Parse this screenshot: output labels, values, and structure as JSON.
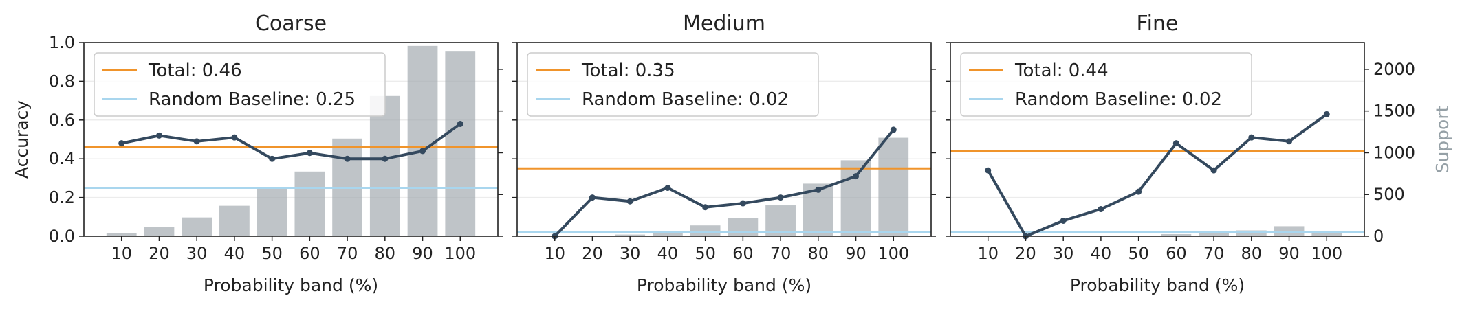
{
  "chart_data": [
    {
      "type": "bar",
      "title": "Coarse",
      "xlabel": "Probability band (%)",
      "ylabel": "Accuracy",
      "y2label": "",
      "categories": [
        "10",
        "20",
        "30",
        "40",
        "50",
        "60",
        "70",
        "80",
        "90",
        "100"
      ],
      "ylim": [
        0,
        1.0
      ],
      "y2lim": [
        0,
        2320
      ],
      "yticks": [
        0.0,
        0.2,
        0.4,
        0.6,
        0.8,
        1.0
      ],
      "y2ticks": [
        0,
        500,
        1000,
        1500,
        2000
      ],
      "show_left_tick_labels": true,
      "show_right_tick_labels": false,
      "support": [
        40,
        115,
        225,
        365,
        580,
        775,
        1170,
        1680,
        2280,
        2220
      ],
      "accuracy": [
        0.48,
        0.52,
        0.49,
        0.51,
        0.4,
        0.43,
        0.4,
        0.4,
        0.44,
        0.58
      ],
      "total": 0.46,
      "random_baseline": 0.25,
      "legend": [
        "Total: 0.46",
        "Random Baseline: 0.25"
      ],
      "legend_position": "top-left",
      "grid": "horizontal"
    },
    {
      "type": "bar",
      "title": "Medium",
      "xlabel": "Probability band (%)",
      "ylabel": "",
      "y2label": "",
      "categories": [
        "10",
        "20",
        "30",
        "40",
        "50",
        "60",
        "70",
        "80",
        "90",
        "100"
      ],
      "ylim": [
        0,
        1.0
      ],
      "y2lim": [
        0,
        2320
      ],
      "yticks": [
        0.0,
        0.2,
        0.4,
        0.6,
        0.8,
        1.0
      ],
      "y2ticks": [
        0,
        500,
        1000,
        1500,
        2000
      ],
      "show_left_tick_labels": false,
      "show_right_tick_labels": false,
      "support": [
        0,
        0,
        20,
        40,
        130,
        220,
        370,
        630,
        910,
        1180
      ],
      "accuracy": [
        0.0,
        0.2,
        0.18,
        0.25,
        0.15,
        0.17,
        0.2,
        0.24,
        0.31,
        0.55
      ],
      "total": 0.35,
      "random_baseline": 0.02,
      "legend": [
        "Total: 0.35",
        "Random Baseline: 0.02"
      ],
      "legend_position": "top-left",
      "grid": "horizontal"
    },
    {
      "type": "bar",
      "title": "Fine",
      "xlabel": "Probability band (%)",
      "ylabel": "",
      "y2label": "Support",
      "categories": [
        "10",
        "20",
        "30",
        "40",
        "50",
        "60",
        "70",
        "80",
        "90",
        "100"
      ],
      "ylim": [
        0,
        1.0
      ],
      "y2lim": [
        0,
        2320
      ],
      "yticks": [
        0.0,
        0.2,
        0.4,
        0.6,
        0.8,
        1.0
      ],
      "y2ticks": [
        0,
        500,
        1000,
        1500,
        2000
      ],
      "show_left_tick_labels": false,
      "show_right_tick_labels": true,
      "support": [
        0,
        0,
        0,
        0,
        0,
        25,
        35,
        70,
        120,
        65
      ],
      "accuracy": [
        0.34,
        0.0,
        0.08,
        0.14,
        0.23,
        0.48,
        0.34,
        0.51,
        0.49,
        0.63
      ],
      "total": 0.44,
      "random_baseline": 0.02,
      "legend": [
        "Total: 0.44",
        "Random Baseline: 0.02"
      ],
      "legend_position": "top-left",
      "grid": "horizontal"
    }
  ],
  "colors": {
    "bars": "#a4abb1",
    "accuracy_line": "#34495e",
    "total_line": "#f0942b",
    "baseline_line": "#a9d6ee",
    "grid": "#ececec",
    "secondary_axis_label": "#95a0a6"
  }
}
